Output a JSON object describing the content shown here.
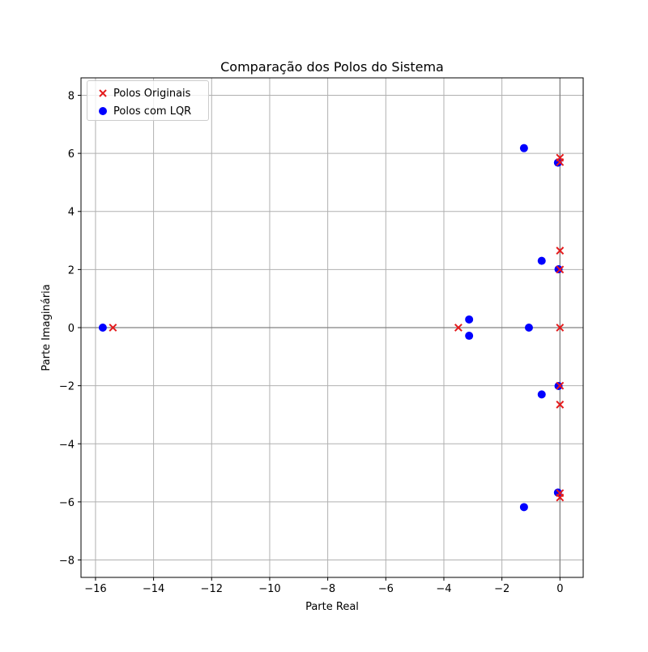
{
  "chart_data": {
    "type": "scatter",
    "title": "Comparação dos Polos do Sistema",
    "xlabel": "Parte Real",
    "ylabel": "Parte Imaginária",
    "xlim": [
      -16.5,
      0.8
    ],
    "ylim": [
      -8.6,
      8.6
    ],
    "xticks": [
      -16,
      -14,
      -12,
      -10,
      -8,
      -6,
      -4,
      -2,
      0
    ],
    "yticks": [
      -8,
      -6,
      -4,
      -2,
      0,
      2,
      4,
      6,
      8
    ],
    "xtick_labels": [
      "−16",
      "−14",
      "−12",
      "−10",
      "−8",
      "−6",
      "−4",
      "−2",
      "0"
    ],
    "ytick_labels": [
      "−8",
      "−6",
      "−4",
      "−2",
      "0",
      "2",
      "4",
      "6",
      "8"
    ],
    "grid": true,
    "legend_position": "top-left",
    "series": [
      {
        "name": "Polos Originais",
        "marker": "x",
        "color": "#e41a1c",
        "points": [
          [
            -15.4,
            0
          ],
          [
            -3.5,
            0
          ],
          [
            0.0,
            5.85
          ],
          [
            0.0,
            -5.85
          ],
          [
            0.0,
            2.65
          ],
          [
            0.0,
            -2.65
          ],
          [
            0.0,
            2.0
          ],
          [
            0.0,
            -2.0
          ],
          [
            0.0,
            0.0
          ],
          [
            0.0,
            5.7
          ],
          [
            0.0,
            -5.7
          ]
        ]
      },
      {
        "name": "Polos com LQR",
        "marker": "o",
        "color": "#0000ff",
        "points": [
          [
            -15.75,
            0
          ],
          [
            -3.13,
            0.28
          ],
          [
            -3.13,
            -0.28
          ],
          [
            -1.07,
            0.0
          ],
          [
            -1.24,
            6.18
          ],
          [
            -1.24,
            -6.18
          ],
          [
            -0.07,
            5.68
          ],
          [
            -0.07,
            -5.68
          ],
          [
            -0.63,
            2.3
          ],
          [
            -0.63,
            -2.3
          ],
          [
            -0.05,
            2.01
          ],
          [
            -0.05,
            -2.01
          ]
        ]
      }
    ]
  }
}
